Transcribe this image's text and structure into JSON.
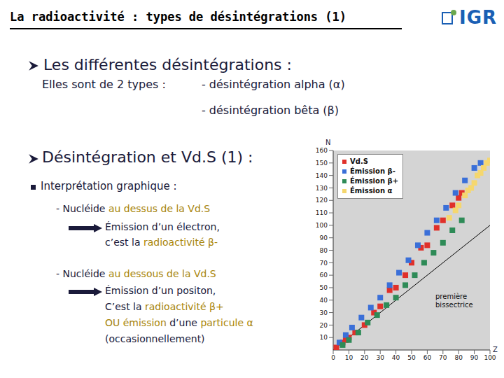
{
  "header": {
    "title": "La radioactivité : types de désintégrations (1)",
    "logo": "IGR"
  },
  "section1": {
    "heading": "Les différentes désintégrations :",
    "intro": "Elles sont de 2 types :",
    "items": [
      "- désintégration alpha (α)",
      "- désintégration bêta (β)"
    ]
  },
  "section2": {
    "heading": "Désintégration et Vd.S (1) :",
    "subheading": "Interprétation graphique :",
    "cases": [
      {
        "line": [
          "- Nucléide ",
          {
            "text": "au dessus de la Vd.S",
            "color": "#a8850a"
          }
        ],
        "result": [
          [
            "Émission d’un électron,"
          ],
          [
            "c’est la ",
            {
              "text": "radioactivité β-",
              "color": "#a8850a"
            }
          ]
        ]
      },
      {
        "line": [
          "- Nucléide ",
          {
            "text": "au dessous de la Vd.S",
            "color": "#a8850a"
          }
        ],
        "result": [
          [
            "Émission d’un positon,"
          ],
          [
            "C’est la ",
            {
              "text": "radioactivité β+",
              "color": "#a8850a"
            }
          ],
          [
            {
              "text": "OU émission",
              "color": "#a8850a"
            },
            " d’une ",
            {
              "text": "particule α",
              "color": "#a8850a"
            }
          ],
          [
            "(occasionnellement)"
          ]
        ]
      }
    ]
  },
  "chart_data": {
    "type": "scatter",
    "x_label": "Z",
    "y_label": "N",
    "xlim": [
      0,
      100
    ],
    "xticks": [
      0,
      10,
      20,
      30,
      40,
      50,
      60,
      70,
      80,
      90,
      100
    ],
    "ylim": [
      0,
      160
    ],
    "yticks": [
      10,
      20,
      30,
      40,
      50,
      60,
      70,
      80,
      90,
      100,
      110,
      120,
      130,
      140,
      150,
      160
    ],
    "grid": false,
    "legend": "upper left",
    "marker": "square",
    "series": [
      {
        "name": "Vd.S",
        "color": "#e0302a",
        "x": [
          2,
          6,
          8,
          10,
          14,
          20,
          26,
          30,
          36,
          40,
          46,
          50,
          56,
          60,
          66,
          70,
          76,
          80,
          82
        ],
        "values": [
          2,
          6,
          8,
          10,
          14,
          20,
          30,
          35,
          48,
          50,
          60,
          70,
          82,
          84,
          98,
          104,
          116,
          122,
          126
        ]
      },
      {
        "name": "Émission β-",
        "color": "#3a6fd8",
        "x": [
          4,
          8,
          12,
          18,
          24,
          30,
          36,
          42,
          48,
          54,
          60,
          66,
          72,
          78,
          84,
          90,
          94
        ],
        "values": [
          6,
          12,
          18,
          26,
          34,
          42,
          52,
          62,
          72,
          84,
          94,
          104,
          114,
          126,
          136,
          146,
          150
        ]
      },
      {
        "name": "Émission β+",
        "color": "#2e8b57",
        "x": [
          6,
          10,
          16,
          22,
          28,
          34,
          40,
          46,
          52,
          58,
          64,
          70,
          76,
          82
        ],
        "values": [
          4,
          8,
          14,
          22,
          28,
          36,
          42,
          52,
          60,
          70,
          78,
          86,
          96,
          104
        ]
      },
      {
        "name": "Émission α",
        "color": "#f5d76e",
        "x": [
          74,
          78,
          80,
          84,
          86,
          88,
          90,
          92,
          94,
          96,
          98,
          100
        ],
        "values": [
          106,
          112,
          116,
          124,
          128,
          130,
          134,
          140,
          142,
          146,
          150,
          152
        ]
      }
    ],
    "reference_line": {
      "label": "première bissectrice",
      "x": [
        0,
        100
      ],
      "values": [
        0,
        100
      ]
    }
  }
}
